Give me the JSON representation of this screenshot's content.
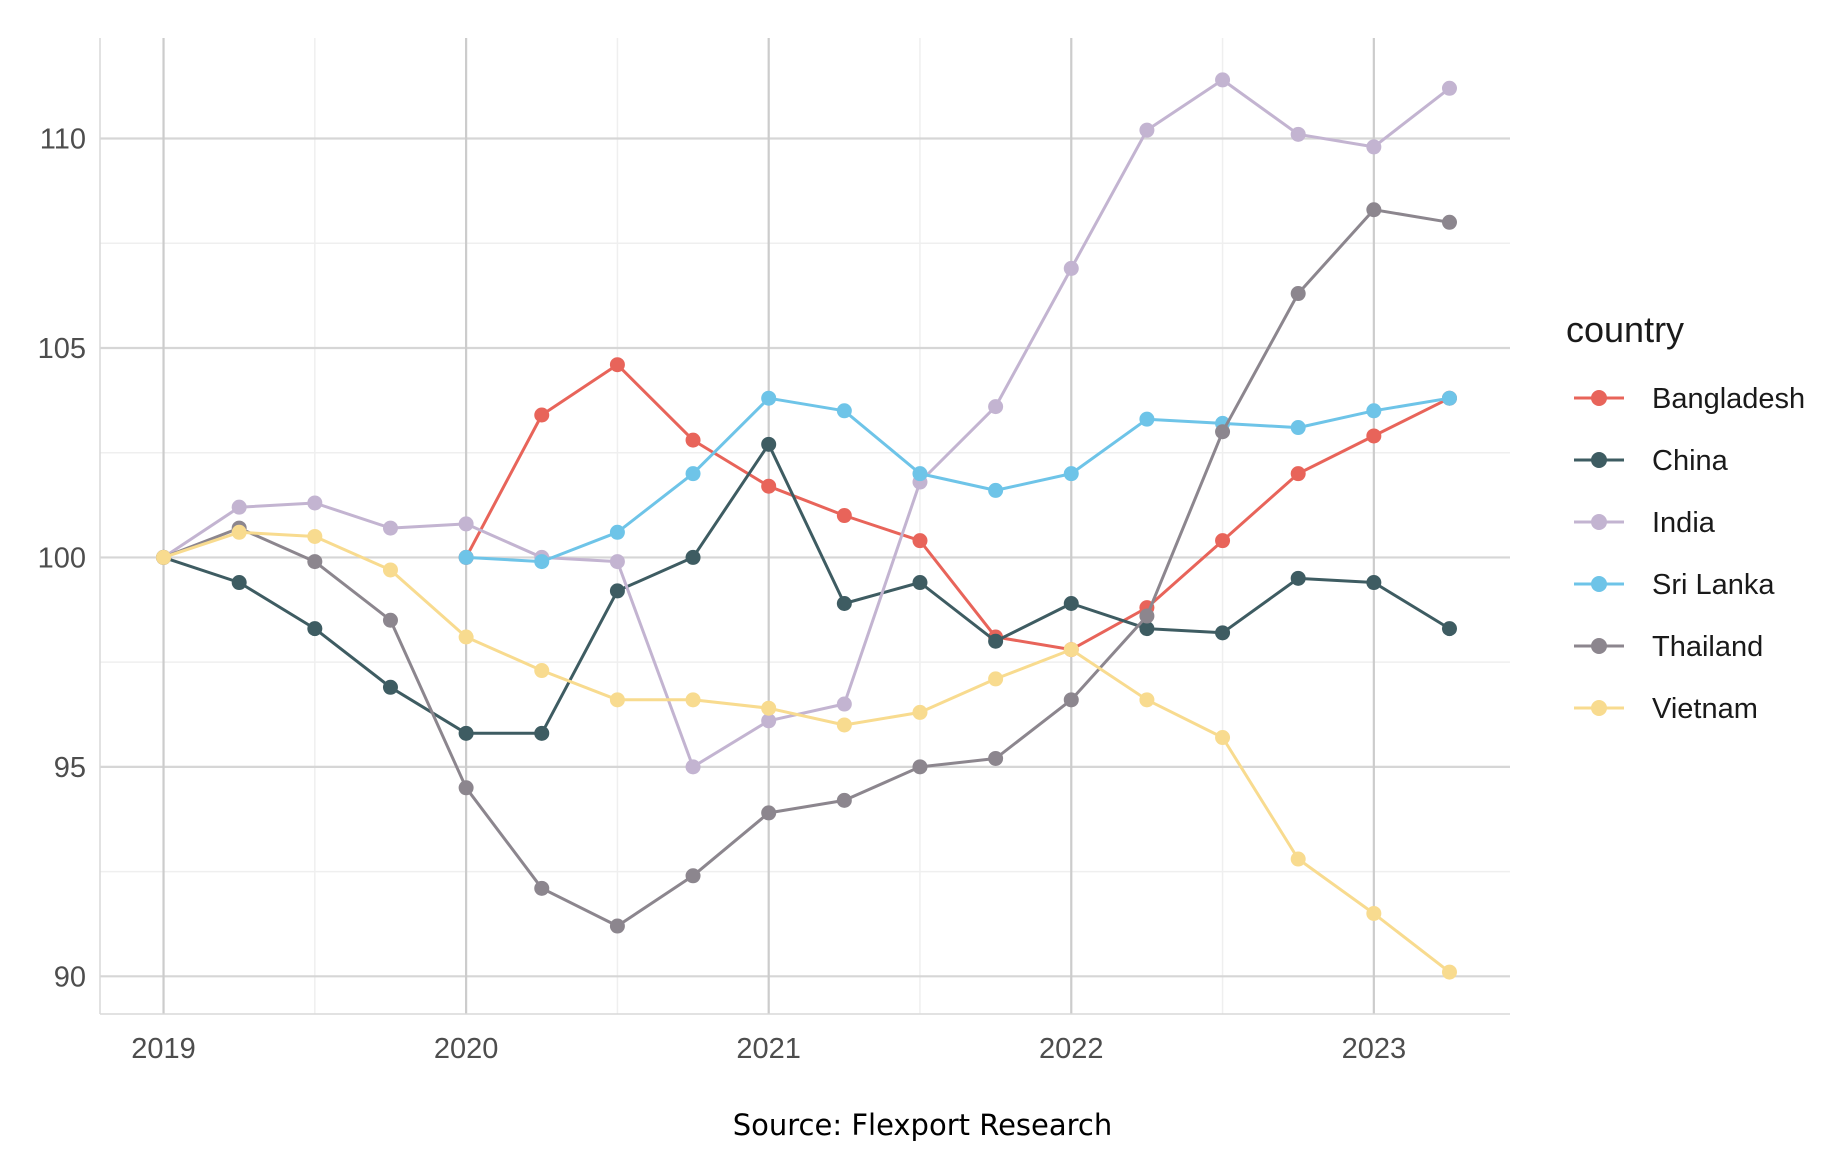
{
  "caption": "Source: Flexport Research",
  "chart_data": {
    "type": "line",
    "title": "",
    "xlabel": "",
    "ylabel": "",
    "xlim": [
      2018.79,
      2023.45
    ],
    "ylim": [
      89.1,
      112.4
    ],
    "x_ticks": [
      2019,
      2020,
      2021,
      2022,
      2023
    ],
    "y_ticks": [
      90,
      95,
      100,
      105,
      110
    ],
    "grid": true,
    "legend": {
      "title": "country",
      "position": "right"
    },
    "series": [
      {
        "name": "Bangladesh",
        "color": "#E8645A",
        "points": [
          [
            2020.0,
            100.0
          ],
          [
            2020.25,
            103.4
          ],
          [
            2020.5,
            104.6
          ],
          [
            2020.75,
            102.8
          ],
          [
            2021.0,
            101.7
          ],
          [
            2021.25,
            101.0
          ],
          [
            2021.5,
            100.4
          ],
          [
            2021.75,
            98.1
          ],
          [
            2022.0,
            97.8
          ],
          [
            2022.25,
            98.8
          ],
          [
            2022.5,
            100.4
          ],
          [
            2022.75,
            102.0
          ],
          [
            2023.0,
            102.9
          ],
          [
            2023.25,
            103.8
          ]
        ]
      },
      {
        "name": "China",
        "color": "#3E5C62",
        "points": [
          [
            2019.0,
            100.0
          ],
          [
            2019.25,
            99.4
          ],
          [
            2019.5,
            98.3
          ],
          [
            2019.75,
            96.9
          ],
          [
            2020.0,
            95.8
          ],
          [
            2020.25,
            95.8
          ],
          [
            2020.5,
            99.2
          ],
          [
            2020.75,
            100.0
          ],
          [
            2021.0,
            102.7
          ],
          [
            2021.25,
            98.9
          ],
          [
            2021.5,
            99.4
          ],
          [
            2021.75,
            98.0
          ],
          [
            2022.0,
            98.9
          ],
          [
            2022.25,
            98.3
          ],
          [
            2022.5,
            98.2
          ],
          [
            2022.75,
            99.5
          ],
          [
            2023.0,
            99.4
          ],
          [
            2023.25,
            98.3
          ]
        ]
      },
      {
        "name": "India",
        "color": "#C3B4D1",
        "points": [
          [
            2019.0,
            100.0
          ],
          [
            2019.25,
            101.2
          ],
          [
            2019.5,
            101.3
          ],
          [
            2019.75,
            100.7
          ],
          [
            2020.0,
            100.8
          ],
          [
            2020.25,
            100.0
          ],
          [
            2020.5,
            99.9
          ],
          [
            2020.75,
            95.0
          ],
          [
            2021.0,
            96.1
          ],
          [
            2021.25,
            96.5
          ],
          [
            2021.5,
            101.8
          ],
          [
            2021.75,
            103.6
          ],
          [
            2022.0,
            106.9
          ],
          [
            2022.25,
            110.2
          ],
          [
            2022.5,
            111.4
          ],
          [
            2022.75,
            110.1
          ],
          [
            2023.0,
            109.8
          ],
          [
            2023.25,
            111.2
          ]
        ]
      },
      {
        "name": "Sri Lanka",
        "color": "#6EC4E8",
        "points": [
          [
            2020.0,
            100.0
          ],
          [
            2020.25,
            99.9
          ],
          [
            2020.5,
            100.6
          ],
          [
            2020.75,
            102.0
          ],
          [
            2021.0,
            103.8
          ],
          [
            2021.25,
            103.5
          ],
          [
            2021.5,
            102.0
          ],
          [
            2021.75,
            101.6
          ],
          [
            2022.0,
            102.0
          ],
          [
            2022.25,
            103.3
          ],
          [
            2022.5,
            103.2
          ],
          [
            2022.75,
            103.1
          ],
          [
            2023.0,
            103.5
          ],
          [
            2023.25,
            103.8
          ]
        ]
      },
      {
        "name": "Thailand",
        "color": "#8C868E",
        "points": [
          [
            2019.0,
            100.0
          ],
          [
            2019.25,
            100.7
          ],
          [
            2019.5,
            99.9
          ],
          [
            2019.75,
            98.5
          ],
          [
            2020.0,
            94.5
          ],
          [
            2020.25,
            92.1
          ],
          [
            2020.5,
            91.2
          ],
          [
            2020.75,
            92.4
          ],
          [
            2021.0,
            93.9
          ],
          [
            2021.25,
            94.2
          ],
          [
            2021.5,
            95.0
          ],
          [
            2021.75,
            95.2
          ],
          [
            2022.0,
            96.6
          ],
          [
            2022.25,
            98.6
          ],
          [
            2022.5,
            103.0
          ],
          [
            2022.75,
            106.3
          ],
          [
            2023.0,
            108.3
          ],
          [
            2023.25,
            108.0
          ]
        ]
      },
      {
        "name": "Vietnam",
        "color": "#F8DB8F",
        "points": [
          [
            2019.0,
            100.0
          ],
          [
            2019.25,
            100.6
          ],
          [
            2019.5,
            100.5
          ],
          [
            2019.75,
            99.7
          ],
          [
            2020.0,
            98.1
          ],
          [
            2020.25,
            97.3
          ],
          [
            2020.5,
            96.6
          ],
          [
            2020.75,
            96.6
          ],
          [
            2021.0,
            96.4
          ],
          [
            2021.25,
            96.0
          ],
          [
            2021.5,
            96.3
          ],
          [
            2021.75,
            97.1
          ],
          [
            2022.0,
            97.8
          ],
          [
            2022.25,
            96.6
          ],
          [
            2022.5,
            95.7
          ],
          [
            2022.75,
            92.8
          ],
          [
            2023.0,
            91.5
          ],
          [
            2023.25,
            90.1
          ]
        ]
      }
    ]
  }
}
